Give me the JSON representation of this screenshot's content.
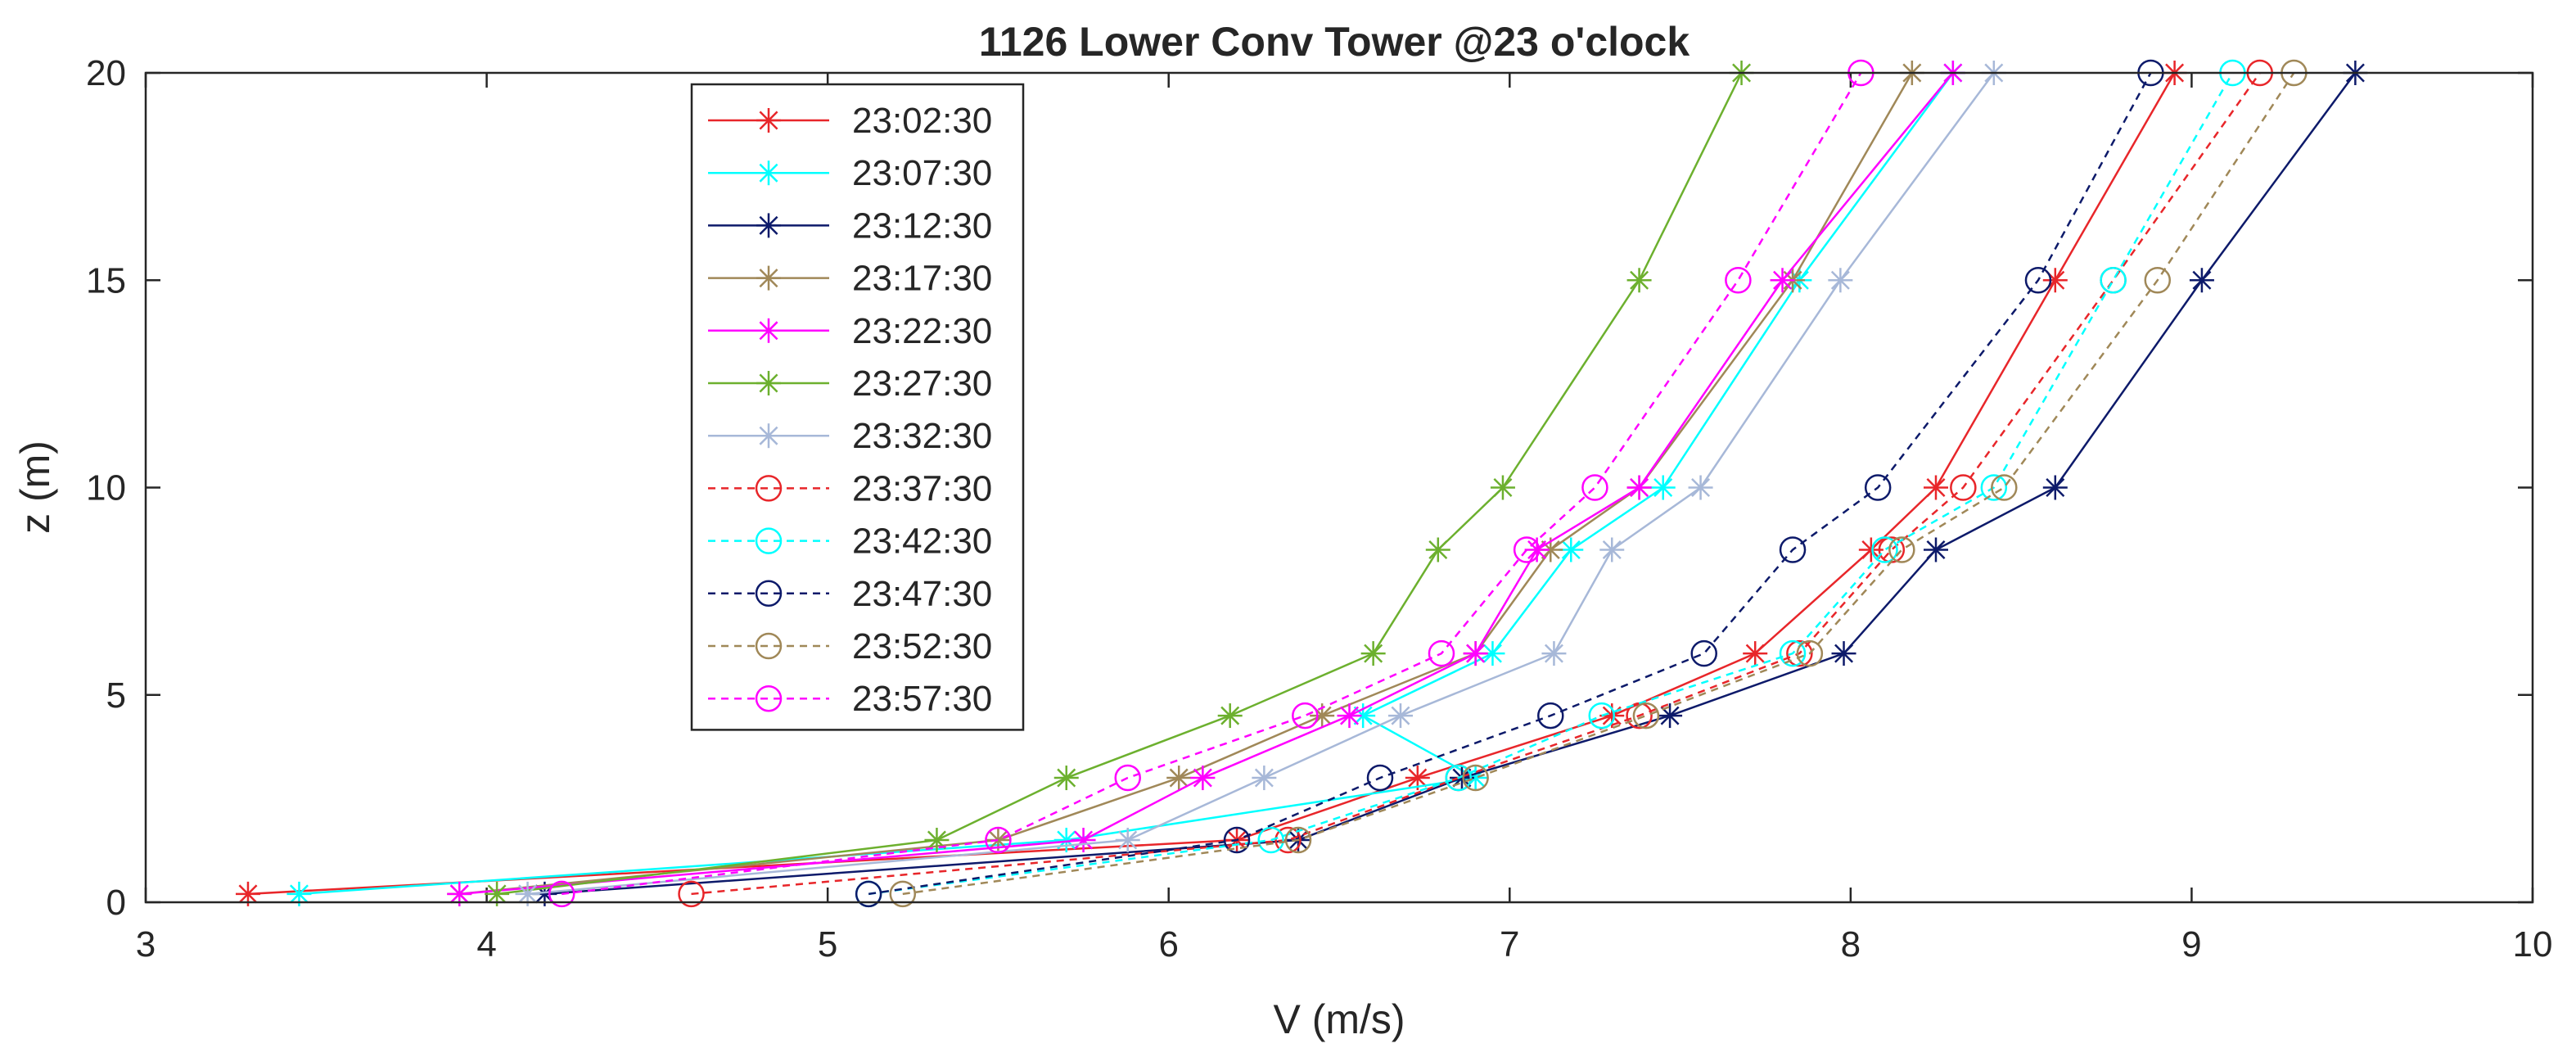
{
  "chart_data": {
    "type": "line",
    "title": "1126 Lower Conv Tower @23 o'clock",
    "xlabel": "V (m/s)",
    "ylabel": "z (m)",
    "xlim": [
      3,
      10
    ],
    "ylim": [
      0,
      20
    ],
    "xticks": [
      3,
      4,
      5,
      6,
      7,
      8,
      9,
      10
    ],
    "yticks": [
      0,
      5,
      10,
      15,
      20
    ],
    "x_tick_labels": [
      "3",
      "4",
      "5",
      "6",
      "7",
      "8",
      "9",
      "10"
    ],
    "y_tick_labels": [
      "0",
      "5",
      "10",
      "15",
      "20"
    ],
    "grid": false,
    "legend_position": "top-left (inside axes)",
    "heights": [
      0.2,
      1.5,
      3,
      4.5,
      6,
      8.5,
      10,
      15,
      20
    ],
    "series": [
      {
        "name": "23:02:30",
        "color": "#e8262a",
        "marker": "asterisk",
        "dash": "solid",
        "values": [
          3.3,
          6.2,
          6.73,
          7.3,
          7.72,
          8.06,
          8.25,
          8.6,
          8.95
        ]
      },
      {
        "name": "23:07:30",
        "color": "#00ffff",
        "marker": "asterisk",
        "dash": "solid",
        "values": [
          3.45,
          5.7,
          6.9,
          6.57,
          6.95,
          7.18,
          7.45,
          7.85,
          8.3
        ]
      },
      {
        "name": "23:12:30",
        "color": "#0d1a6a",
        "marker": "asterisk",
        "dash": "solid",
        "values": [
          4.17,
          6.38,
          6.86,
          7.47,
          7.98,
          8.25,
          8.6,
          9.03,
          9.48
        ]
      },
      {
        "name": "23:17:30",
        "color": "#a08858",
        "marker": "asterisk",
        "dash": "solid",
        "values": [
          3.92,
          5.5,
          6.03,
          6.45,
          6.9,
          7.12,
          7.38,
          7.83,
          8.18
        ]
      },
      {
        "name": "23:22:30",
        "color": "#ff00ff",
        "marker": "asterisk",
        "dash": "solid",
        "values": [
          3.92,
          5.75,
          6.1,
          6.53,
          6.9,
          7.08,
          7.38,
          7.8,
          8.3
        ]
      },
      {
        "name": "23:27:30",
        "color": "#6cb02e",
        "marker": "asterisk",
        "dash": "solid",
        "values": [
          4.03,
          5.32,
          5.7,
          6.18,
          6.6,
          6.79,
          6.98,
          7.38,
          7.68
        ]
      },
      {
        "name": "23:32:30",
        "color": "#a7b8d8",
        "marker": "asterisk",
        "dash": "solid",
        "values": [
          4.12,
          5.88,
          6.28,
          6.68,
          7.13,
          7.3,
          7.56,
          7.97,
          8.42
        ]
      },
      {
        "name": "23:37:30",
        "color": "#e8262a",
        "marker": "circle",
        "dash": "dashed",
        "values": [
          4.6,
          6.35,
          6.85,
          7.38,
          7.85,
          8.12,
          8.33,
          8.77,
          9.2
        ]
      },
      {
        "name": "23:42:30",
        "color": "#00ffff",
        "marker": "circle",
        "dash": "dashed",
        "values": [
          5.12,
          6.3,
          6.85,
          7.27,
          7.83,
          8.1,
          8.42,
          8.77,
          9.12
        ]
      },
      {
        "name": "23:47:30",
        "color": "#0d1a6a",
        "marker": "circle",
        "dash": "dashed",
        "values": [
          5.12,
          6.2,
          6.62,
          7.12,
          7.57,
          7.83,
          8.08,
          8.55,
          8.88
        ]
      },
      {
        "name": "23:52:30",
        "color": "#a08858",
        "marker": "circle",
        "dash": "dashed",
        "values": [
          5.22,
          6.38,
          6.9,
          7.4,
          7.88,
          8.15,
          8.45,
          8.9,
          9.3
        ]
      },
      {
        "name": "23:57:30",
        "color": "#ff00ff",
        "marker": "circle",
        "dash": "dashed",
        "values": [
          4.22,
          5.5,
          5.88,
          6.4,
          6.8,
          7.05,
          7.25,
          7.67,
          8.03
        ]
      }
    ]
  }
}
